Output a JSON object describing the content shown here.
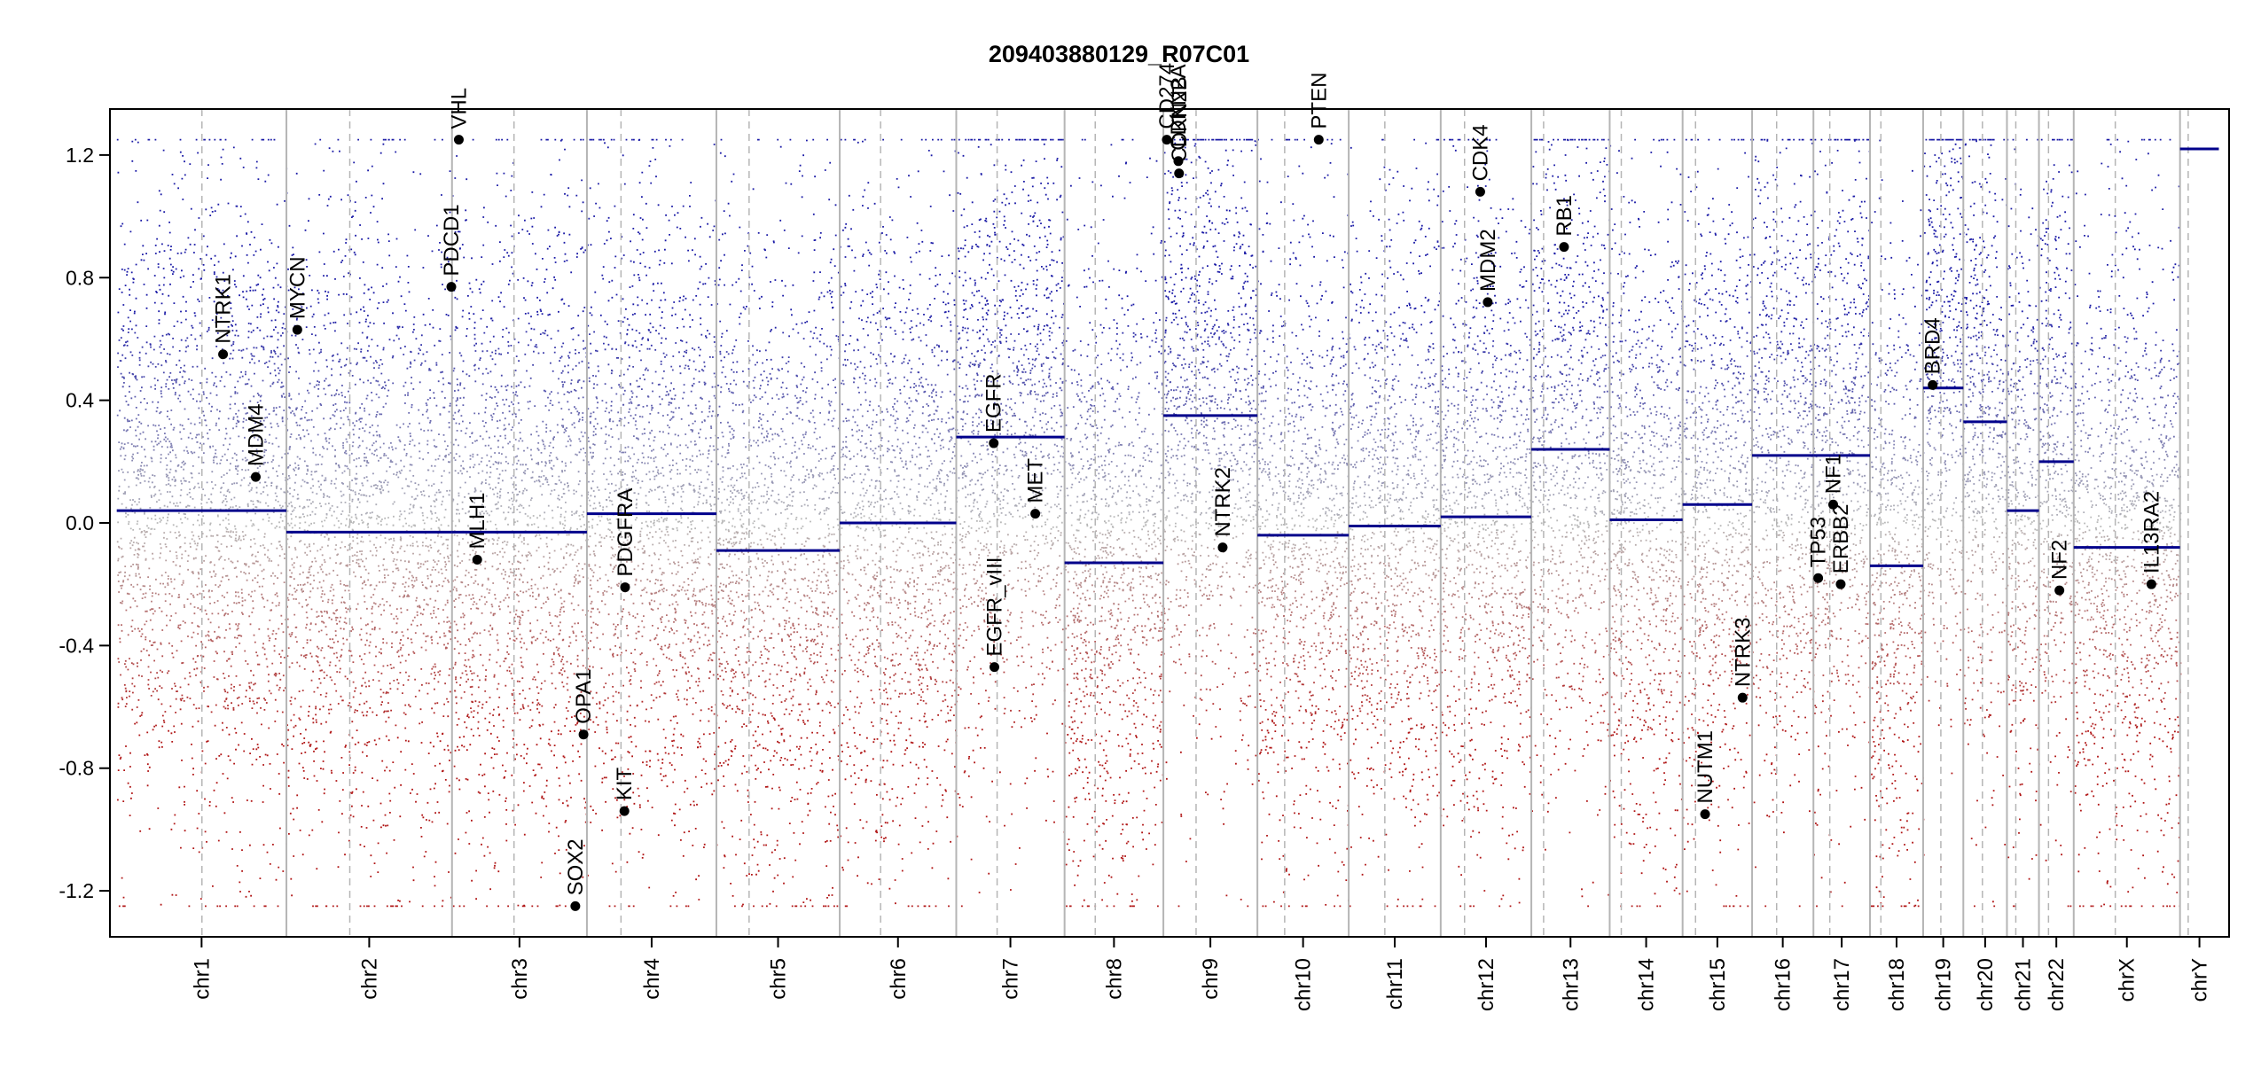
{
  "chart_data": {
    "type": "scatter",
    "title": "209403880129_R07C01",
    "xlabel": "",
    "ylabel": "",
    "ylim": [
      -1.35,
      1.35
    ],
    "y_ticks": [
      -1.2,
      -0.8,
      -0.4,
      0.0,
      0.4,
      0.8,
      1.2
    ],
    "y_tick_labels": [
      "-1.2",
      "-0.8",
      "-0.4",
      "0.0",
      "0.4",
      "0.8",
      "1.2"
    ],
    "grid": false,
    "legend": "none",
    "colors": {
      "gain": "#1a1aa6",
      "loss": "#b01515",
      "neutral": "#b8b8b8",
      "segment": "#00008b",
      "gene_point": "#000000",
      "chrom_border": "#b5b5b5",
      "centromere": "#b5b5b5"
    },
    "chromosomes": [
      {
        "name": "chr1",
        "label": "chr1",
        "start": 0,
        "end": 249,
        "centromere": 125,
        "segment": 0.04
      },
      {
        "name": "chr2",
        "label": "chr2",
        "start": 249,
        "end": 492,
        "centromere": 342,
        "segment": -0.03
      },
      {
        "name": "chr3",
        "label": "chr3",
        "start": 492,
        "end": 690,
        "centromere": 583,
        "segment": -0.03
      },
      {
        "name": "chr4",
        "label": "chr4",
        "start": 690,
        "end": 880,
        "centromere": 740,
        "segment": 0.03
      },
      {
        "name": "chr5",
        "label": "chr5",
        "start": 880,
        "end": 1061,
        "centromere": 928,
        "segment": -0.09
      },
      {
        "name": "chr6",
        "label": "chr6",
        "start": 1061,
        "end": 1232,
        "centromere": 1121,
        "segment": 0.0
      },
      {
        "name": "chr7",
        "label": "chr7",
        "start": 1232,
        "end": 1391,
        "centromere": 1292,
        "segment": 0.28
      },
      {
        "name": "chr8",
        "label": "chr8",
        "start": 1391,
        "end": 1536,
        "centromere": 1436,
        "segment": -0.13
      },
      {
        "name": "chr9",
        "label": "chr9",
        "start": 1536,
        "end": 1674,
        "centromere": 1584,
        "segment": 0.35
      },
      {
        "name": "chr10",
        "label": "chr10",
        "start": 1674,
        "end": 1808,
        "centromere": 1714,
        "segment": -0.04
      },
      {
        "name": "chr11",
        "label": "chr11",
        "start": 1808,
        "end": 1943,
        "centromere": 1861,
        "segment": -0.01
      },
      {
        "name": "chr12",
        "label": "chr12",
        "start": 1943,
        "end": 2076,
        "centromere": 1978,
        "segment": 0.02
      },
      {
        "name": "chr13",
        "label": "chr13",
        "start": 2076,
        "end": 2191,
        "centromere": 2094,
        "segment": 0.24
      },
      {
        "name": "chr14",
        "label": "chr14",
        "start": 2191,
        "end": 2298,
        "centromere": 2208,
        "segment": 0.01
      },
      {
        "name": "chr15",
        "label": "chr15",
        "start": 2298,
        "end": 2400,
        "centromere": 2317,
        "segment": 0.06
      },
      {
        "name": "chr16",
        "label": "chr16",
        "start": 2400,
        "end": 2490,
        "centromere": 2436,
        "segment": 0.22
      },
      {
        "name": "chr17",
        "label": "chr17",
        "start": 2490,
        "end": 2573,
        "centromere": 2514,
        "segment": 0.22
      },
      {
        "name": "chr18",
        "label": "chr18",
        "start": 2573,
        "end": 2651,
        "centromere": 2589,
        "segment": -0.14
      },
      {
        "name": "chr19",
        "label": "chr19",
        "start": 2651,
        "end": 2710,
        "centromere": 2677,
        "segment": 0.44
      },
      {
        "name": "chr20",
        "label": "chr20",
        "start": 2710,
        "end": 2774,
        "centromere": 2738,
        "segment": 0.33
      },
      {
        "name": "chr21",
        "label": "chr21",
        "start": 2774,
        "end": 2821,
        "centromere": 2787,
        "segment": 0.04
      },
      {
        "name": "chr22",
        "label": "chr22",
        "start": 2821,
        "end": 2872,
        "centromere": 2835,
        "segment": 0.2
      },
      {
        "name": "chrX",
        "label": "chrX",
        "start": 2872,
        "end": 3028,
        "centromere": 2933,
        "segment": -0.08
      },
      {
        "name": "chrY",
        "label": "chrY",
        "start": 3028,
        "end": 3085,
        "centromere": 3040,
        "segment": 1.22
      }
    ],
    "genes": [
      {
        "name": "NTRK1",
        "pos": 156,
        "value": 0.55
      },
      {
        "name": "MDM4",
        "pos": 204,
        "value": 0.15
      },
      {
        "name": "MYCN",
        "pos": 265,
        "value": 0.63
      },
      {
        "name": "PDCD1",
        "pos": 491,
        "value": 0.77
      },
      {
        "name": "VHL",
        "pos": 502,
        "value": 1.25
      },
      {
        "name": "MLH1",
        "pos": 529,
        "value": -0.12
      },
      {
        "name": "SOX2",
        "pos": 673,
        "value": -1.25
      },
      {
        "name": "OPA1",
        "pos": 685,
        "value": -0.69
      },
      {
        "name": "KIT",
        "pos": 745,
        "value": -0.94
      },
      {
        "name": "PDGFRA",
        "pos": 746,
        "value": -0.21
      },
      {
        "name": "EGFR",
        "pos": 1287,
        "value": 0.26
      },
      {
        "name": "EGFR_vIII",
        "pos": 1288,
        "value": -0.47
      },
      {
        "name": "MET",
        "pos": 1348,
        "value": 0.03
      },
      {
        "name": "CD274",
        "pos": 1541,
        "value": 1.25
      },
      {
        "name": "CDKN2A",
        "pos": 1558,
        "value": 1.18
      },
      {
        "name": "CDKN2B",
        "pos": 1559,
        "value": 1.14
      },
      {
        "name": "NTRK2",
        "pos": 1623,
        "value": -0.08
      },
      {
        "name": "PTEN",
        "pos": 1764,
        "value": 1.25
      },
      {
        "name": "CDK4",
        "pos": 2001,
        "value": 1.08
      },
      {
        "name": "MDM2",
        "pos": 2012,
        "value": 0.72
      },
      {
        "name": "RB1",
        "pos": 2124,
        "value": 0.9
      },
      {
        "name": "NUTM1",
        "pos": 2331,
        "value": -0.95
      },
      {
        "name": "NTRK3",
        "pos": 2386,
        "value": -0.57
      },
      {
        "name": "TP53",
        "pos": 2497,
        "value": -0.18
      },
      {
        "name": "NF1",
        "pos": 2519,
        "value": 0.06
      },
      {
        "name": "ERBB2",
        "pos": 2530,
        "value": -0.2
      },
      {
        "name": "BRD4",
        "pos": 2665,
        "value": 0.45
      },
      {
        "name": "NF2",
        "pos": 2851,
        "value": -0.22
      },
      {
        "name": "IL13RA2",
        "pos": 2986,
        "value": -0.2
      }
    ]
  }
}
